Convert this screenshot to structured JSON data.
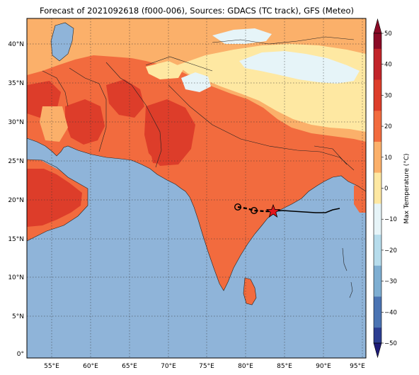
{
  "title": "Forecast of 2021092618 (f000-006), Sources: GDACS (TC track), GFS (Meteo)",
  "colorbar": {
    "label": "Max Temperature (°C)",
    "ticks": [
      "50",
      "40",
      "30",
      "20",
      "10",
      "0",
      "−10",
      "−20",
      "−30",
      "−40",
      "−50"
    ],
    "colors": [
      "#8b0a26",
      "#c2242a",
      "#dd3d2a",
      "#f26b3e",
      "#fbb06a",
      "#fee8a2",
      "#e6f4f8",
      "#b6dcec",
      "#7eaed2",
      "#4b74b3",
      "#2c3e92",
      "#1e1b78"
    ]
  },
  "map": {
    "ocean_color": "#8fb4d9",
    "lat_labels": [
      "40°N",
      "35°N",
      "30°N",
      "25°N",
      "20°N",
      "15°N",
      "10°N",
      "5°N",
      "0°"
    ],
    "lon_labels": [
      "55°E",
      "60°E",
      "65°E",
      "70°E",
      "75°E",
      "80°E",
      "85°E",
      "90°E",
      "95°E"
    ]
  },
  "cyclone_track": {
    "markers": [
      "past-position",
      "past-position",
      "current-position-star"
    ]
  }
}
